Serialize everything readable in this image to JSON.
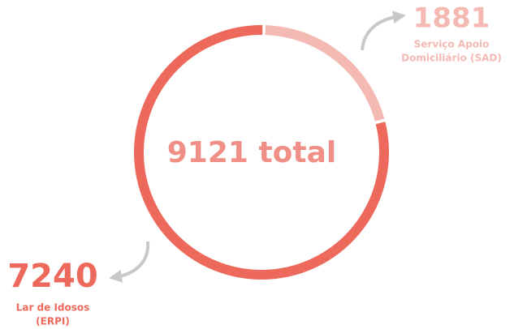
{
  "chart_data": {
    "type": "donut",
    "categories": [
      [
        "Serviço Apoio",
        "Domiciliário (SAD)"
      ],
      [
        "Lar de Idosos",
        "(ERPI)"
      ]
    ],
    "values": [
      1881,
      7240
    ],
    "colors": [
      "#f5b9b3",
      "#ec695c"
    ],
    "total": 9121,
    "total_suffix": "total"
  }
}
